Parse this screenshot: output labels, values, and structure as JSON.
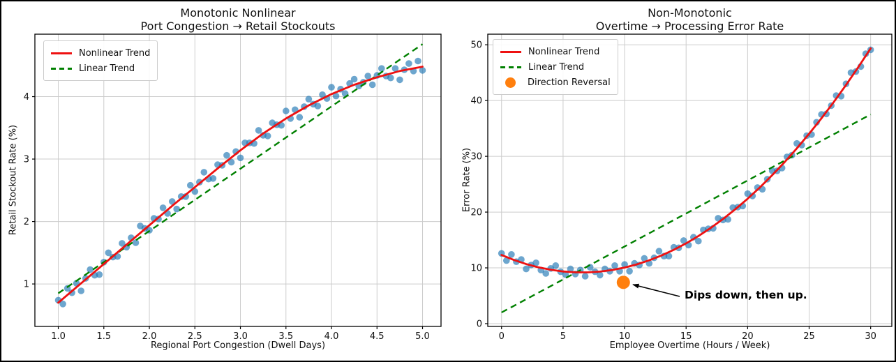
{
  "figure": {
    "background": "#ffffff",
    "border_color": "#000000",
    "grid_color": "#cccccc",
    "spine_color": "#000000",
    "tick_label_color": "#111111"
  },
  "chart_data": [
    {
      "id": "left",
      "type": "scatter",
      "title_line1": "Monotonic Nonlinear",
      "title_line2": "Port Congestion → Retail Stockouts",
      "xlabel": "Regional Port Congestion (Dwell Days)",
      "ylabel": "Retail Stockout Rate (%)",
      "grid": true,
      "legend_position": "upper left",
      "xlim": [
        0.743,
        5.203
      ],
      "ylim": [
        0.32,
        5.0
      ],
      "xticks": [
        1.0,
        1.5,
        2.0,
        2.5,
        3.0,
        3.5,
        4.0,
        4.5,
        5.0
      ],
      "xtick_labels": [
        "1.0",
        "1.5",
        "2.0",
        "2.5",
        "3.0",
        "3.5",
        "4.0",
        "4.5",
        "5.0"
      ],
      "yticks": [
        1,
        2,
        3,
        4
      ],
      "ytick_labels": [
        "1",
        "2",
        "3",
        "4"
      ],
      "legend": [
        {
          "label": "Nonlinear Trend",
          "swatch": "red-solid-line"
        },
        {
          "label": "Linear Trend",
          "swatch": "green-dashed-line"
        }
      ],
      "nonlinear_trend": {
        "color": "#ee1111",
        "points": [
          [
            1,
            0.7
          ],
          [
            1.25,
            1.01
          ],
          [
            1.5,
            1.32
          ],
          [
            1.75,
            1.63
          ],
          [
            2,
            1.94
          ],
          [
            2.25,
            2.25
          ],
          [
            2.5,
            2.55
          ],
          [
            2.75,
            2.85
          ],
          [
            3,
            3.14
          ],
          [
            3.25,
            3.41
          ],
          [
            3.5,
            3.65
          ],
          [
            3.75,
            3.86
          ],
          [
            4,
            4.04
          ],
          [
            4.25,
            4.19
          ],
          [
            4.5,
            4.31
          ],
          [
            4.75,
            4.41
          ],
          [
            5,
            4.48
          ]
        ]
      },
      "linear_trend": {
        "color": "#008000",
        "points": [
          [
            1,
            0.85
          ],
          [
            5,
            4.84
          ]
        ]
      },
      "scatter": {
        "color": "#1f77b4",
        "opacity": 0.65,
        "radius": 4.8,
        "points": [
          [
            1.0,
            0.74
          ],
          [
            1.05,
            0.68
          ],
          [
            1.1,
            0.93
          ],
          [
            1.15,
            0.86
          ],
          [
            1.2,
            1.01
          ],
          [
            1.25,
            0.89
          ],
          [
            1.3,
            1.09
          ],
          [
            1.35,
            1.23
          ],
          [
            1.4,
            1.14
          ],
          [
            1.45,
            1.15
          ],
          [
            1.5,
            1.35
          ],
          [
            1.55,
            1.5
          ],
          [
            1.6,
            1.43
          ],
          [
            1.65,
            1.44
          ],
          [
            1.7,
            1.65
          ],
          [
            1.75,
            1.59
          ],
          [
            1.8,
            1.74
          ],
          [
            1.85,
            1.66
          ],
          [
            1.9,
            1.93
          ],
          [
            1.95,
            1.89
          ],
          [
            2.0,
            1.86
          ],
          [
            2.05,
            2.05
          ],
          [
            2.1,
            2.04
          ],
          [
            2.15,
            2.22
          ],
          [
            2.2,
            2.13
          ],
          [
            2.25,
            2.32
          ],
          [
            2.3,
            2.2
          ],
          [
            2.35,
            2.4
          ],
          [
            2.4,
            2.4
          ],
          [
            2.45,
            2.58
          ],
          [
            2.5,
            2.48
          ],
          [
            2.55,
            2.63
          ],
          [
            2.6,
            2.79
          ],
          [
            2.65,
            2.68
          ],
          [
            2.7,
            2.69
          ],
          [
            2.75,
            2.91
          ],
          [
            2.8,
            2.9
          ],
          [
            2.85,
            3.06
          ],
          [
            2.9,
            2.95
          ],
          [
            2.95,
            3.12
          ],
          [
            3.0,
            3.02
          ],
          [
            3.05,
            3.26
          ],
          [
            3.1,
            3.26
          ],
          [
            3.15,
            3.25
          ],
          [
            3.2,
            3.46
          ],
          [
            3.25,
            3.38
          ],
          [
            3.3,
            3.37
          ],
          [
            3.35,
            3.58
          ],
          [
            3.4,
            3.55
          ],
          [
            3.45,
            3.54
          ],
          [
            3.5,
            3.77
          ],
          [
            3.55,
            3.65
          ],
          [
            3.6,
            3.79
          ],
          [
            3.65,
            3.67
          ],
          [
            3.7,
            3.84
          ],
          [
            3.75,
            3.96
          ],
          [
            3.8,
            3.88
          ],
          [
            3.85,
            3.85
          ],
          [
            3.9,
            4.03
          ],
          [
            3.95,
            3.97
          ],
          [
            4.0,
            4.15
          ],
          [
            4.05,
            4.01
          ],
          [
            4.1,
            4.12
          ],
          [
            4.15,
            4.05
          ],
          [
            4.2,
            4.21
          ],
          [
            4.25,
            4.28
          ],
          [
            4.3,
            4.17
          ],
          [
            4.35,
            4.23
          ],
          [
            4.4,
            4.33
          ],
          [
            4.45,
            4.19
          ],
          [
            4.5,
            4.34
          ],
          [
            4.55,
            4.45
          ],
          [
            4.6,
            4.33
          ],
          [
            4.65,
            4.3
          ],
          [
            4.7,
            4.45
          ],
          [
            4.75,
            4.27
          ],
          [
            4.8,
            4.43
          ],
          [
            4.85,
            4.53
          ],
          [
            4.9,
            4.41
          ],
          [
            4.95,
            4.57
          ],
          [
            5.0,
            4.42
          ]
        ]
      }
    },
    {
      "id": "right",
      "type": "scatter",
      "title_line1": "Non-Monotonic",
      "title_line2": "Overtime → Processing Error Rate",
      "xlabel": "Employee Overtime (Hours / Week)",
      "ylabel": "Error Rate (%)",
      "grid": true,
      "legend_position": "upper left",
      "xlim": [
        -1.12,
        31.72
      ],
      "ylim": [
        -0.5,
        51.9
      ],
      "xticks": [
        0,
        5,
        10,
        15,
        20,
        25,
        30
      ],
      "xtick_labels": [
        "0",
        "5",
        "10",
        "15",
        "20",
        "25",
        "30"
      ],
      "yticks": [
        0,
        10,
        20,
        30,
        40,
        50
      ],
      "ytick_labels": [
        "0",
        "10",
        "20",
        "30",
        "40",
        "50"
      ],
      "legend": [
        {
          "label": "Nonlinear Trend",
          "swatch": "red-solid-line"
        },
        {
          "label": "Linear Trend",
          "swatch": "green-dashed-line"
        },
        {
          "label": "Direction Reversal",
          "swatch": "orange-dot"
        }
      ],
      "nonlinear_trend": {
        "color": "#ee1111",
        "points": [
          [
            0,
            12.3
          ],
          [
            1,
            11.42
          ],
          [
            2,
            10.68
          ],
          [
            3,
            10.09
          ],
          [
            4,
            9.65
          ],
          [
            5,
            9.35
          ],
          [
            6,
            9.2
          ],
          [
            7,
            9.19
          ],
          [
            8,
            9.33
          ],
          [
            9,
            9.62
          ],
          [
            10,
            10.05
          ],
          [
            11,
            10.63
          ],
          [
            12,
            11.35
          ],
          [
            13,
            12.22
          ],
          [
            14,
            13.24
          ],
          [
            15,
            14.4
          ],
          [
            16,
            15.71
          ],
          [
            17,
            17.16
          ],
          [
            18,
            18.76
          ],
          [
            19,
            20.51
          ],
          [
            20,
            22.4
          ],
          [
            21,
            24.44
          ],
          [
            22,
            26.62
          ],
          [
            23,
            28.95
          ],
          [
            24,
            31.43
          ],
          [
            25,
            34.05
          ],
          [
            26,
            36.82
          ],
          [
            27,
            39.73
          ],
          [
            28,
            42.79
          ],
          [
            29,
            46.0
          ],
          [
            30,
            49.35
          ]
        ]
      },
      "linear_trend": {
        "color": "#008000",
        "points": [
          [
            0,
            2.0
          ],
          [
            30,
            37.5
          ]
        ]
      },
      "scatter": {
        "color": "#1f77b4",
        "opacity": 0.65,
        "radius": 4.8,
        "points": [
          [
            0,
            12.6
          ],
          [
            0.4,
            11.3
          ],
          [
            0.8,
            12.4
          ],
          [
            1.2,
            11.1
          ],
          [
            1.6,
            11.5
          ],
          [
            2,
            9.8
          ],
          [
            2.4,
            10.5
          ],
          [
            2.8,
            10.9
          ],
          [
            3.2,
            9.6
          ],
          [
            3.6,
            9.0
          ],
          [
            4,
            9.9
          ],
          [
            4.4,
            10.4
          ],
          [
            4.8,
            9.3
          ],
          [
            5.2,
            8.8
          ],
          [
            5.6,
            9.8
          ],
          [
            6,
            8.9
          ],
          [
            6.4,
            9.6
          ],
          [
            6.8,
            8.5
          ],
          [
            7.2,
            10.1
          ],
          [
            7.6,
            9.3
          ],
          [
            8,
            8.7
          ],
          [
            8.4,
            9.8
          ],
          [
            8.8,
            9.4
          ],
          [
            9.2,
            10.4
          ],
          [
            9.6,
            9.4
          ],
          [
            10,
            10.6
          ],
          [
            10.4,
            9.4
          ],
          [
            10.8,
            10.8
          ],
          [
            11.2,
            10.5
          ],
          [
            11.6,
            11.7
          ],
          [
            12,
            10.8
          ],
          [
            12.4,
            11.8
          ],
          [
            12.8,
            13.0
          ],
          [
            13.2,
            12.1
          ],
          [
            13.6,
            12.1
          ],
          [
            14,
            13.7
          ],
          [
            14.4,
            13.6
          ],
          [
            14.8,
            14.9
          ],
          [
            15.2,
            14.1
          ],
          [
            15.6,
            15.5
          ],
          [
            16,
            14.8
          ],
          [
            16.4,
            16.8
          ],
          [
            16.8,
            17.0
          ],
          [
            17.2,
            17.1
          ],
          [
            17.6,
            18.9
          ],
          [
            18,
            18.6
          ],
          [
            18.4,
            18.7
          ],
          [
            18.8,
            20.8
          ],
          [
            19.2,
            20.9
          ],
          [
            19.6,
            21.1
          ],
          [
            20,
            23.3
          ],
          [
            20.4,
            22.9
          ],
          [
            20.8,
            24.4
          ],
          [
            21.2,
            24.1
          ],
          [
            21.6,
            25.9
          ],
          [
            22,
            27.4
          ],
          [
            22.4,
            27.4
          ],
          [
            22.8,
            27.9
          ],
          [
            23.2,
            29.9
          ],
          [
            23.6,
            30.2
          ],
          [
            24,
            32.3
          ],
          [
            24.4,
            32.0
          ],
          [
            24.8,
            33.7
          ],
          [
            25.2,
            33.9
          ],
          [
            25.6,
            36.1
          ],
          [
            26,
            37.5
          ],
          [
            26.4,
            37.6
          ],
          [
            26.8,
            39.1
          ],
          [
            27.2,
            40.9
          ],
          [
            27.6,
            40.8
          ],
          [
            28,
            43.0
          ],
          [
            28.4,
            45.0
          ],
          [
            28.8,
            45.2
          ],
          [
            29.2,
            46.1
          ],
          [
            29.6,
            48.4
          ],
          [
            30,
            49.1
          ]
        ]
      },
      "reversal_marker": {
        "x": 9.9,
        "y": 7.4,
        "color": "#ff7f0e",
        "radius": 9.5
      },
      "annotation": {
        "text": "Dips down, then up.",
        "arrow_from": [
          14.48,
          4.88
        ],
        "arrow_to": [
          10.68,
          7.0
        ],
        "arrow_color": "#000000"
      }
    }
  ]
}
